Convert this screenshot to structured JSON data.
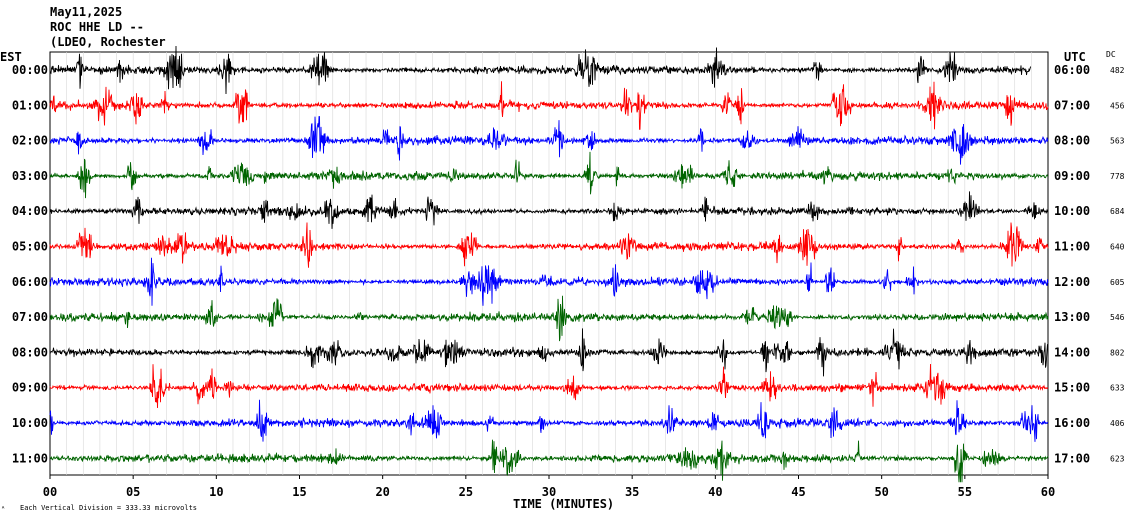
{
  "header": {
    "date": "May11,2025",
    "station": "ROC HHE LD --",
    "location": "(LDEO, Rochester"
  },
  "left_axis_label": "EST",
  "right_axis_label": "UTC",
  "dc_label": "DC",
  "x_axis_label": "TIME (MINUTES)",
  "footer_note": "Each Vertical Division =  333.33 microvolts",
  "chart_data": {
    "type": "line",
    "xlabel": "TIME (MINUTES)",
    "xlim": [
      0,
      60
    ],
    "x_ticks": [
      "00",
      "05",
      "10",
      "15",
      "20",
      "25",
      "30",
      "35",
      "40",
      "45",
      "50",
      "55",
      "60"
    ],
    "rows": [
      {
        "est": "00:00",
        "utc": "06:00",
        "dc": "482",
        "color": "#000000"
      },
      {
        "est": "01:00",
        "utc": "07:00",
        "dc": "456",
        "color": "#ff0000"
      },
      {
        "est": "02:00",
        "utc": "08:00",
        "dc": "563",
        "color": "#0000ff"
      },
      {
        "est": "03:00",
        "utc": "09:00",
        "dc": "778",
        "color": "#006400"
      },
      {
        "est": "04:00",
        "utc": "10:00",
        "dc": "684",
        "color": "#000000"
      },
      {
        "est": "05:00",
        "utc": "11:00",
        "dc": "640",
        "color": "#ff0000"
      },
      {
        "est": "06:00",
        "utc": "12:00",
        "dc": "605",
        "color": "#0000ff"
      },
      {
        "est": "07:00",
        "utc": "13:00",
        "dc": "546",
        "color": "#006400"
      },
      {
        "est": "08:00",
        "utc": "14:00",
        "dc": "802",
        "color": "#000000"
      },
      {
        "est": "09:00",
        "utc": "15:00",
        "dc": "633",
        "color": "#ff0000"
      },
      {
        "est": "10:00",
        "utc": "16:00",
        "dc": "406",
        "color": "#0000ff"
      },
      {
        "est": "11:00",
        "utc": "17:00",
        "dc": "623",
        "color": "#006400"
      }
    ],
    "first_row_end_minute": 59
  }
}
